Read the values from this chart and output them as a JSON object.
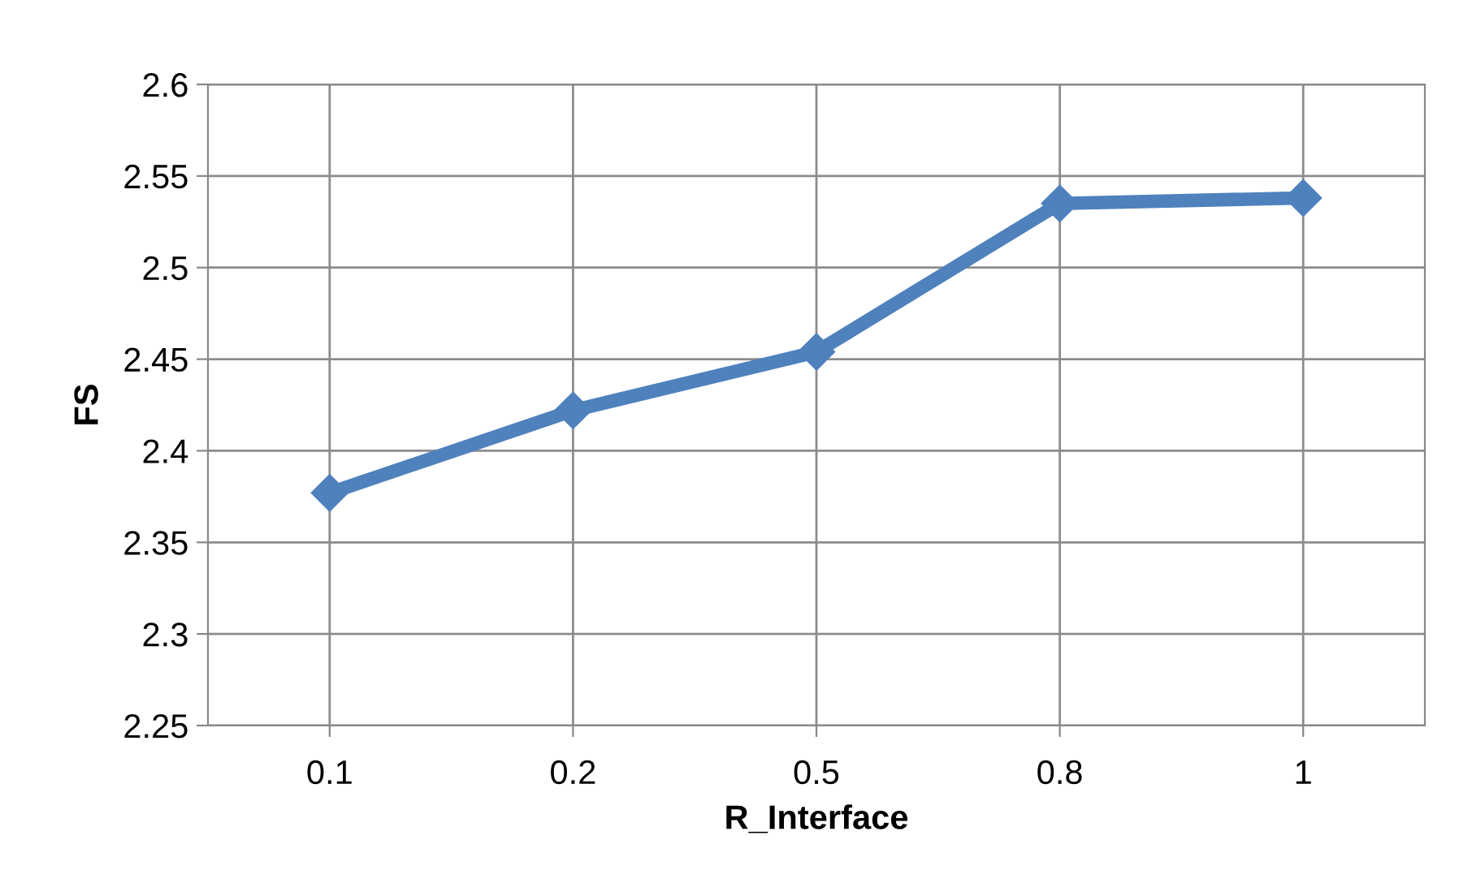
{
  "chart_data": {
    "type": "line",
    "xlabel": "R_Interface",
    "ylabel": "FS",
    "categories": [
      "0.1",
      "0.2",
      "0.5",
      "0.8",
      "1"
    ],
    "series": [
      {
        "color": "#4f81bd",
        "values": [
          2.377,
          2.422,
          2.454,
          2.535,
          2.538
        ]
      }
    ],
    "ylim": [
      2.25,
      2.6
    ],
    "yticks": [
      2.25,
      2.3,
      2.35,
      2.4,
      2.45,
      2.5,
      2.55,
      2.6
    ],
    "grid": true,
    "marker": "diamond",
    "line_style": "solid"
  }
}
